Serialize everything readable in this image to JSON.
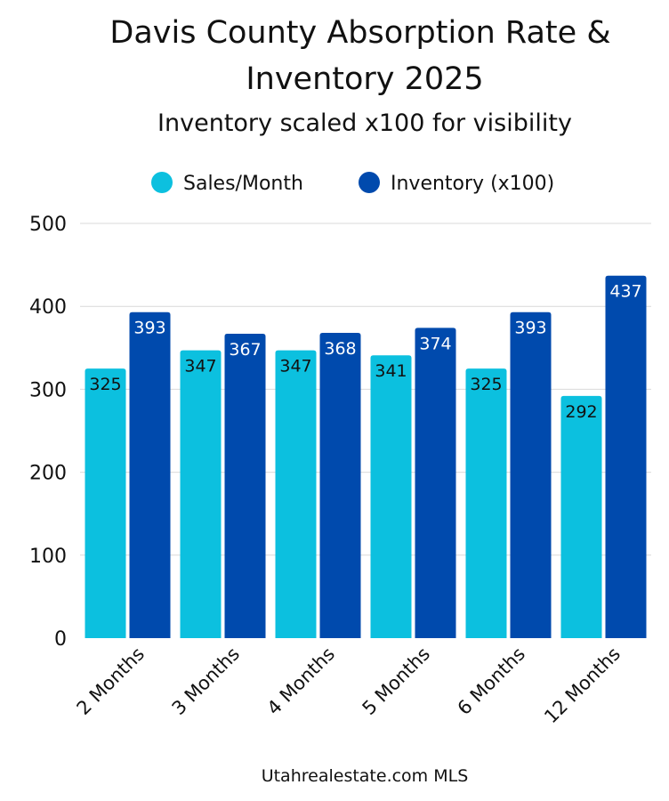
{
  "chart_data": {
    "type": "bar",
    "title_lines": [
      "Davis County Absorption Rate &",
      "Inventory 2025"
    ],
    "subtitle": "Inventory scaled x100 for visibility",
    "categories": [
      "2 Months",
      "3 Months",
      "4 Months",
      "5 Months",
      "6 Months",
      "12 Months"
    ],
    "series": [
      {
        "name": "Sales/Month",
        "color": "#0cc0df",
        "label_color": "#111111",
        "values": [
          325,
          347,
          347,
          341,
          325,
          292
        ]
      },
      {
        "name": "Inventory (x100)",
        "color": "#004aad",
        "label_color": "#ffffff",
        "values": [
          393,
          367,
          368,
          374,
          393,
          437
        ]
      }
    ],
    "yticks": [
      0,
      100,
      200,
      300,
      400,
      500
    ],
    "ylim": [
      0,
      500
    ],
    "grid": true,
    "legend_position": "top-center",
    "source": "Utahrealestate.com MLS"
  }
}
